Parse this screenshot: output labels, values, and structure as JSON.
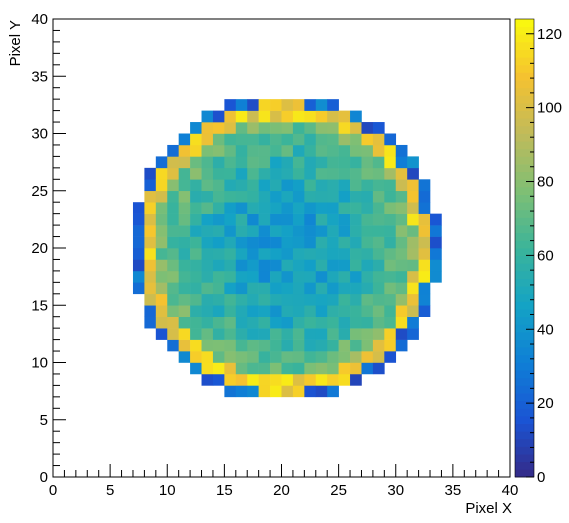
{
  "chart_data": {
    "type": "heatmap",
    "title": "",
    "xlabel": "Pixel X",
    "ylabel": "Pixel Y",
    "xlim": [
      0,
      40
    ],
    "ylim": [
      0,
      40
    ],
    "x_ticks": [
      "0",
      "5",
      "10",
      "15",
      "20",
      "25",
      "30",
      "35",
      "40"
    ],
    "y_ticks": [
      "0",
      "5",
      "10",
      "15",
      "20",
      "25",
      "30",
      "35",
      "40"
    ],
    "colorbar": {
      "range": [
        0,
        124
      ],
      "ticks": [
        "0",
        "20",
        "40",
        "60",
        "80",
        "100",
        "120"
      ]
    },
    "colormap": [
      "#352a87",
      "#1a54d4",
      "#0f7fd6",
      "#14a3c5",
      "#3bb49a",
      "#7fbf74",
      "#c0bb5a",
      "#f5c230",
      "#f9fb0e"
    ],
    "grid": false,
    "legend": "none",
    "map": {
      "shape": "disc",
      "center": [
        20.3,
        20
      ],
      "radius": 13.5,
      "rim_value": 108,
      "center_value": 52,
      "edge_value": 10
    }
  }
}
